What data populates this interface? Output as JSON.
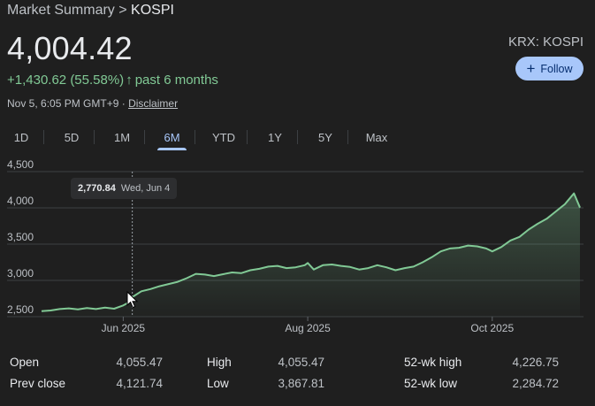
{
  "breadcrumb": {
    "parent": "Market Summary",
    "separator": ">",
    "current": "KOSPI"
  },
  "quote": {
    "price": "4,004.42",
    "change": "+1,430.62 (55.58%)",
    "arrow": "↑",
    "period": "past 6 months",
    "timestamp": "Nov 5, 6:05 PM GMT+9 ·",
    "disclaimer": "Disclaimer",
    "ticker": "KRX: KOSPI",
    "follow_label": "Follow",
    "follow_icon": "plus-icon"
  },
  "tabs": [
    {
      "label": "1D",
      "active": false
    },
    {
      "label": "5D",
      "active": false
    },
    {
      "label": "1M",
      "active": false
    },
    {
      "label": "6M",
      "active": true
    },
    {
      "label": "YTD",
      "active": false
    },
    {
      "label": "1Y",
      "active": false
    },
    {
      "label": "5Y",
      "active": false
    },
    {
      "label": "Max",
      "active": false
    }
  ],
  "tooltip": {
    "value": "2,770.84",
    "date": "Wed, Jun 4"
  },
  "chart_data": {
    "type": "area",
    "y_ticks": [
      "4,500",
      "4,000",
      "3,500",
      "3,000",
      "2,500"
    ],
    "y_tick_values": [
      4500,
      4000,
      3500,
      3000,
      2500
    ],
    "ylim": [
      2500,
      4500
    ],
    "x_labels": [
      "Jun 2025",
      "Aug 2025",
      "Oct 2025"
    ],
    "x_label_days": [
      27,
      88,
      149
    ],
    "xlim": [
      0,
      178
    ],
    "grid": true,
    "line_color": "#81c995",
    "cursor_day": 30,
    "series": [
      {
        "x": [
          0,
          3,
          6,
          9,
          12,
          15,
          18,
          21,
          24,
          27,
          29,
          30,
          33,
          36,
          39,
          42,
          45,
          48,
          51,
          54,
          57,
          60,
          63,
          66,
          69,
          72,
          75,
          78,
          81,
          84,
          87,
          88,
          90,
          93,
          96,
          99,
          102,
          105,
          108,
          111,
          114,
          117,
          120,
          123,
          126,
          129,
          132,
          135,
          138,
          141,
          144,
          147,
          149,
          152,
          155,
          158,
          161,
          164,
          167,
          170,
          173,
          174,
          176,
          178
        ],
        "y": [
          2576,
          2585,
          2605,
          2615,
          2600,
          2620,
          2605,
          2625,
          2610,
          2655,
          2700,
          2770,
          2850,
          2880,
          2920,
          2950,
          2980,
          3030,
          3090,
          3080,
          3060,
          3085,
          3110,
          3100,
          3140,
          3160,
          3190,
          3200,
          3170,
          3180,
          3210,
          3240,
          3150,
          3210,
          3220,
          3200,
          3185,
          3150,
          3170,
          3210,
          3180,
          3140,
          3170,
          3190,
          3250,
          3320,
          3400,
          3440,
          3450,
          3480,
          3470,
          3440,
          3400,
          3460,
          3550,
          3600,
          3700,
          3780,
          3850,
          3950,
          4050,
          4100,
          4200,
          4004
        ]
      }
    ]
  },
  "stats": [
    {
      "label": "Open",
      "value": "4,055.47"
    },
    {
      "label": "High",
      "value": "4,055.47"
    },
    {
      "label": "52-wk high",
      "value": "4,226.75"
    },
    {
      "label": "Prev close",
      "value": "4,121.74"
    },
    {
      "label": "Low",
      "value": "3,867.81"
    },
    {
      "label": "52-wk low",
      "value": "2,284.72"
    }
  ]
}
